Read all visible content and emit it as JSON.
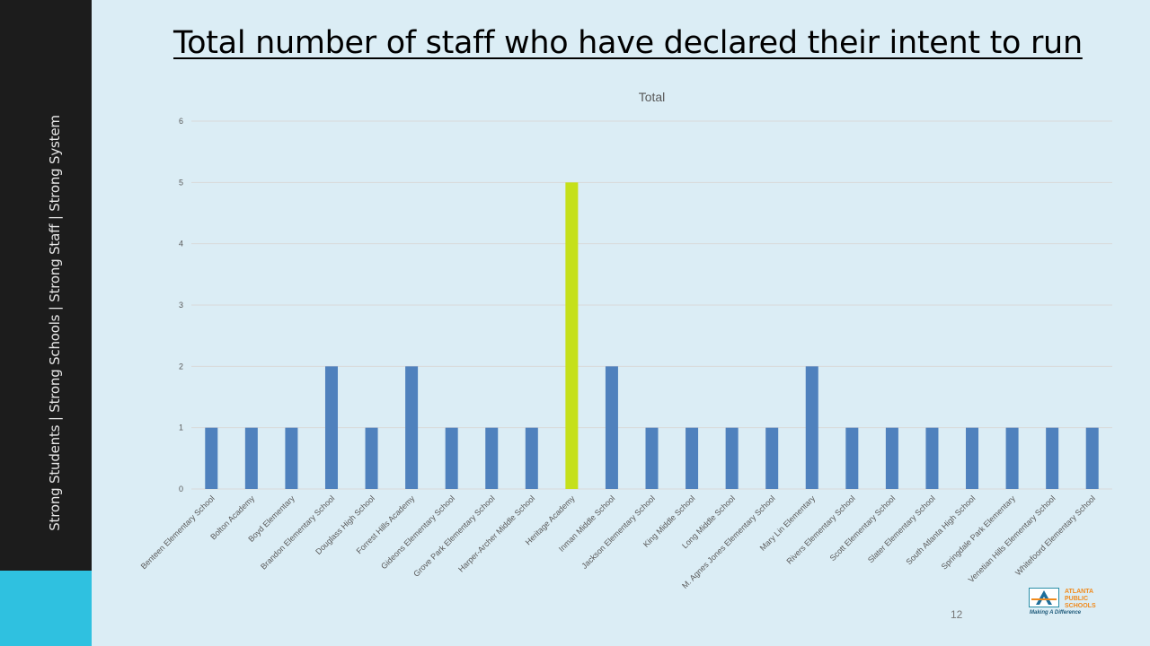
{
  "sidebar": {
    "tagline": "Strong Students  |  Strong Schools  |  Strong Staff  |  Strong System"
  },
  "slide": {
    "title": "Total number of staff who have declared their intent to run",
    "page_number": "12"
  },
  "logo": {
    "line1": "ATLANTA",
    "line2": "PUBLIC",
    "line3": "SCHOOLS",
    "tagline": "Making A Difference",
    "mark": "A"
  },
  "colors": {
    "bar": "#4f81bd",
    "highlight": "#c5e01b",
    "grid": "#d9d9d9",
    "tick": "#595959",
    "background": "#dbedf5"
  },
  "chart_data": {
    "type": "bar",
    "title": "Total",
    "xlabel": "",
    "ylabel": "",
    "ylim": [
      0,
      6
    ],
    "yticks": [
      0,
      1,
      2,
      3,
      4,
      5,
      6
    ],
    "grid": true,
    "legend": "none",
    "categories": [
      "Benteen Elementary School",
      "Bolton Academy",
      "Boyd Elementary",
      "Brandon Elementary School",
      "Douglass High School",
      "Forrest Hills Academy",
      "Gideons Elementary School",
      "Grove Park Elementary School",
      "Harper-Archer Middle School",
      "Heritage Academy",
      "Inman Middle School",
      "Jackson Elementary School",
      "King Middle School",
      "Long Middle School",
      "M. Agnes Jones  Elementary School",
      "Mary Lin Elementary",
      "Rivers Elementary School",
      "Scott Elementary School",
      "Slater Elementary School",
      "South Atlanta High School",
      "Springdale Park Elementary",
      "Venetian Hills Elementary School",
      "Whitefoord Elementary School"
    ],
    "values": [
      1,
      1,
      1,
      2,
      1,
      2,
      1,
      1,
      1,
      5,
      2,
      1,
      1,
      1,
      1,
      2,
      1,
      1,
      1,
      1,
      1,
      1,
      1
    ],
    "highlighted_category": "Heritage Academy"
  }
}
